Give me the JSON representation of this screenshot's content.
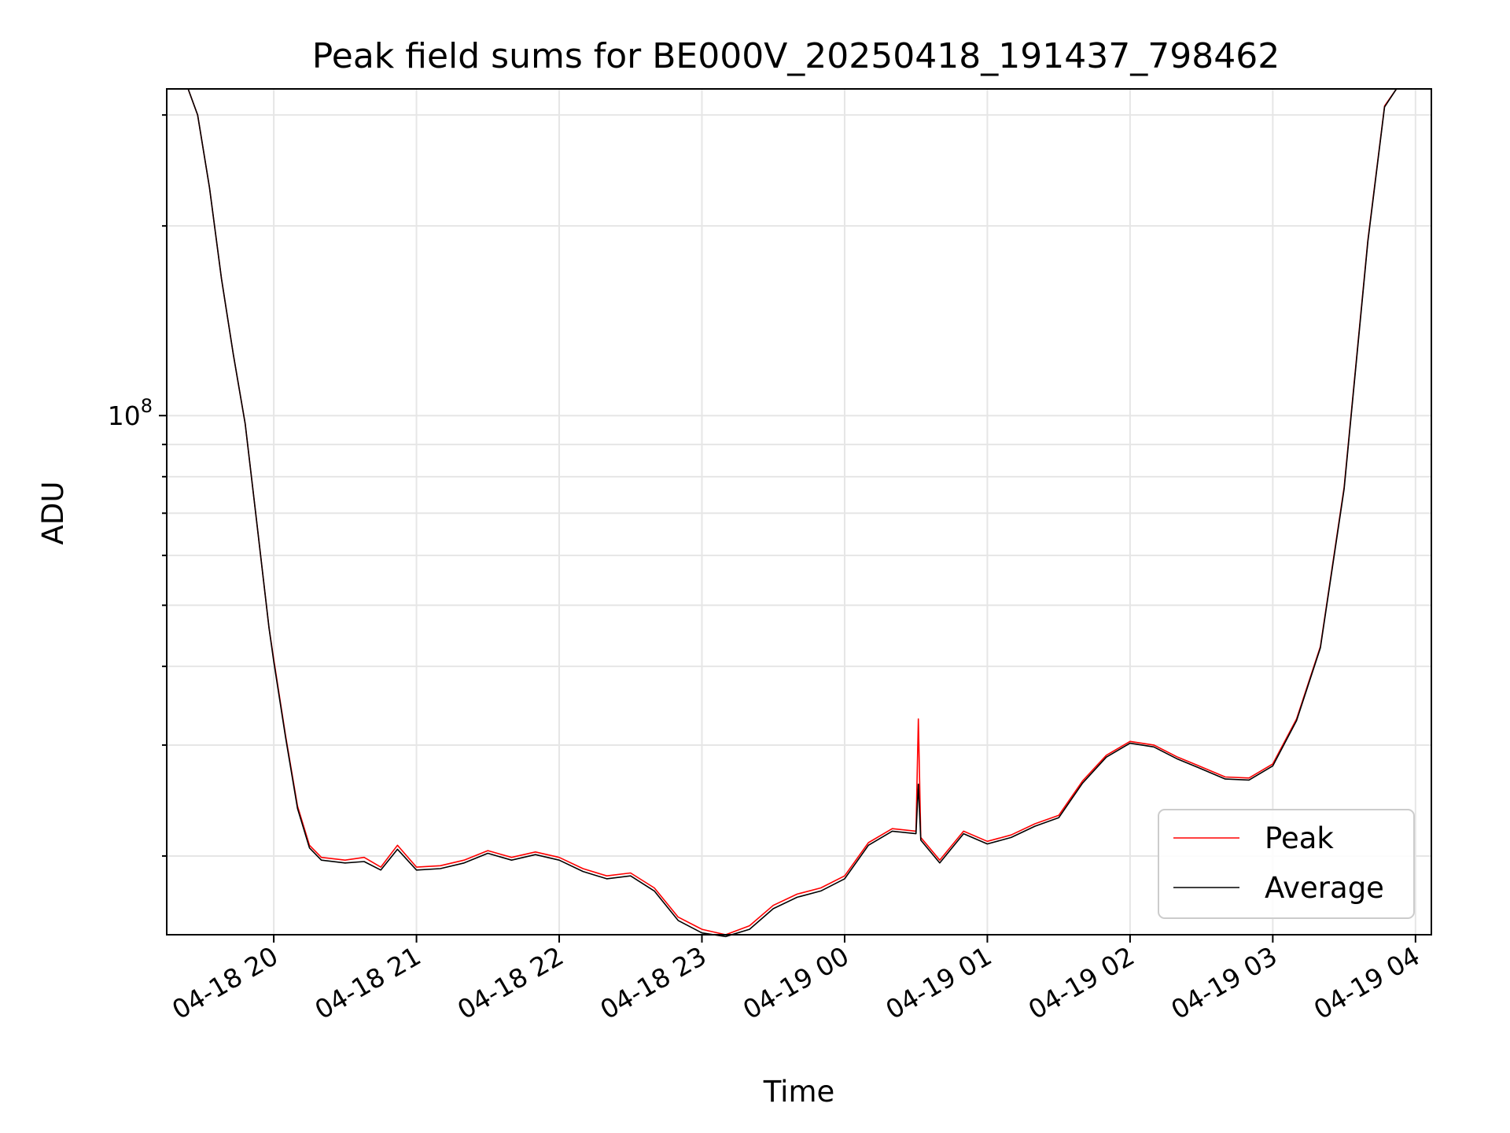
{
  "chart_data": {
    "type": "line",
    "title": "Peak field sums for BE000V_20250418_191437_798462",
    "xlabel": "Time",
    "ylabel": "ADU",
    "y_scale": "log",
    "ylim": [
      15000000,
      330000000
    ],
    "xlim": [
      "2025-04-18T19:15:00",
      "2025-04-19T04:06:40"
    ],
    "x_ticks": [
      {
        "value": "2025-04-18T20:00:00",
        "label": "04-18 20"
      },
      {
        "value": "2025-04-18T21:00:00",
        "label": "04-18 21"
      },
      {
        "value": "2025-04-18T22:00:00",
        "label": "04-18 22"
      },
      {
        "value": "2025-04-18T23:00:00",
        "label": "04-18 23"
      },
      {
        "value": "2025-04-19T00:00:00",
        "label": "04-19 00"
      },
      {
        "value": "2025-04-19T01:00:00",
        "label": "04-19 01"
      },
      {
        "value": "2025-04-19T02:00:00",
        "label": "04-19 02"
      },
      {
        "value": "2025-04-19T03:00:00",
        "label": "04-19 03"
      },
      {
        "value": "2025-04-19T04:00:00",
        "label": "04-19 04"
      }
    ],
    "y_ticks": [
      {
        "value": 100000000,
        "base": "10",
        "exponent": "8"
      }
    ],
    "grid": true,
    "legend_position": "lower-right",
    "series": [
      {
        "name": "Peak",
        "color": "#ff0000",
        "points": [
          [
            "2025-04-18T19:15:00",
            330000000
          ],
          [
            "2025-04-18T19:24:00",
            330000000
          ],
          [
            "2025-04-18T19:28:00",
            300000000
          ],
          [
            "2025-04-18T19:33:00",
            230000000
          ],
          [
            "2025-04-18T19:38:00",
            165000000
          ],
          [
            "2025-04-18T19:43:00",
            125000000
          ],
          [
            "2025-04-18T19:48:00",
            97000000
          ],
          [
            "2025-04-18T19:53:00",
            67000000
          ],
          [
            "2025-04-18T19:58:00",
            46000000
          ],
          [
            "2025-04-18T20:00:00",
            41000000
          ],
          [
            "2025-04-18T20:05:00",
            31000000
          ],
          [
            "2025-04-18T20:10:00",
            24000000
          ],
          [
            "2025-04-18T20:15:00",
            20800000
          ],
          [
            "2025-04-18T20:20:00",
            19900000
          ],
          [
            "2025-04-18T20:30:00",
            19700000
          ],
          [
            "2025-04-18T20:38:00",
            19900000
          ],
          [
            "2025-04-18T20:45:00",
            19200000
          ],
          [
            "2025-04-18T20:52:00",
            20800000
          ],
          [
            "2025-04-18T21:00:00",
            19200000
          ],
          [
            "2025-04-18T21:10:00",
            19300000
          ],
          [
            "2025-04-18T21:20:00",
            19700000
          ],
          [
            "2025-04-18T21:30:00",
            20400000
          ],
          [
            "2025-04-18T21:40:00",
            19900000
          ],
          [
            "2025-04-18T21:50:00",
            20300000
          ],
          [
            "2025-04-18T22:00:00",
            19900000
          ],
          [
            "2025-04-18T22:10:00",
            19100000
          ],
          [
            "2025-04-18T22:20:00",
            18600000
          ],
          [
            "2025-04-18T22:30:00",
            18800000
          ],
          [
            "2025-04-18T22:40:00",
            17800000
          ],
          [
            "2025-04-18T22:50:00",
            16000000
          ],
          [
            "2025-04-18T23:00:00",
            15300000
          ],
          [
            "2025-04-18T23:10:00",
            15000000
          ],
          [
            "2025-04-18T23:20:00",
            15500000
          ],
          [
            "2025-04-18T23:30:00",
            16700000
          ],
          [
            "2025-04-18T23:40:00",
            17400000
          ],
          [
            "2025-04-18T23:50:00",
            17800000
          ],
          [
            "2025-04-19T00:00:00",
            18600000
          ],
          [
            "2025-04-19T00:10:00",
            21000000
          ],
          [
            "2025-04-19T00:20:00",
            22100000
          ],
          [
            "2025-04-19T00:30:00",
            21900000
          ],
          [
            "2025-04-19T00:31:00",
            33000000
          ],
          [
            "2025-04-19T00:32:00",
            21400000
          ],
          [
            "2025-04-19T00:40:00",
            19700000
          ],
          [
            "2025-04-19T00:50:00",
            21900000
          ],
          [
            "2025-04-19T01:00:00",
            21100000
          ],
          [
            "2025-04-19T01:10:00",
            21600000
          ],
          [
            "2025-04-19T01:20:00",
            22500000
          ],
          [
            "2025-04-19T01:30:00",
            23200000
          ],
          [
            "2025-04-19T01:40:00",
            26300000
          ],
          [
            "2025-04-19T01:50:00",
            28900000
          ],
          [
            "2025-04-19T02:00:00",
            30400000
          ],
          [
            "2025-04-19T02:10:00",
            30000000
          ],
          [
            "2025-04-19T02:20:00",
            28700000
          ],
          [
            "2025-04-19T02:30:00",
            27700000
          ],
          [
            "2025-04-19T02:40:00",
            26700000
          ],
          [
            "2025-04-19T02:50:00",
            26600000
          ],
          [
            "2025-04-19T03:00:00",
            28000000
          ],
          [
            "2025-04-19T03:10:00",
            33000000
          ],
          [
            "2025-04-19T03:20:00",
            43000000
          ],
          [
            "2025-04-19T03:30:00",
            77000000
          ],
          [
            "2025-04-19T03:40:00",
            190000000
          ],
          [
            "2025-04-19T03:47:00",
            310000000
          ],
          [
            "2025-04-19T03:52:00",
            330000000
          ],
          [
            "2025-04-19T04:06:40",
            330000000
          ]
        ]
      },
      {
        "name": "Average",
        "color": "#000000",
        "points": [
          [
            "2025-04-18T19:15:00",
            330000000
          ],
          [
            "2025-04-18T19:24:00",
            330000000
          ],
          [
            "2025-04-18T19:28:00",
            300000000
          ],
          [
            "2025-04-18T19:33:00",
            230000000
          ],
          [
            "2025-04-18T19:38:00",
            165000000
          ],
          [
            "2025-04-18T19:43:00",
            125000000
          ],
          [
            "2025-04-18T19:48:00",
            97000000
          ],
          [
            "2025-04-18T19:53:00",
            67000000
          ],
          [
            "2025-04-18T19:58:00",
            46000000
          ],
          [
            "2025-04-18T20:00:00",
            40700000
          ],
          [
            "2025-04-18T20:05:00",
            30800000
          ],
          [
            "2025-04-18T20:10:00",
            23800000
          ],
          [
            "2025-04-18T20:15:00",
            20600000
          ],
          [
            "2025-04-18T20:20:00",
            19700000
          ],
          [
            "2025-04-18T20:30:00",
            19500000
          ],
          [
            "2025-04-18T20:38:00",
            19600000
          ],
          [
            "2025-04-18T20:45:00",
            19000000
          ],
          [
            "2025-04-18T20:52:00",
            20500000
          ],
          [
            "2025-04-18T21:00:00",
            19000000
          ],
          [
            "2025-04-18T21:10:00",
            19100000
          ],
          [
            "2025-04-18T21:20:00",
            19500000
          ],
          [
            "2025-04-18T21:30:00",
            20200000
          ],
          [
            "2025-04-18T21:40:00",
            19700000
          ],
          [
            "2025-04-18T21:50:00",
            20100000
          ],
          [
            "2025-04-18T22:00:00",
            19700000
          ],
          [
            "2025-04-18T22:10:00",
            18900000
          ],
          [
            "2025-04-18T22:20:00",
            18400000
          ],
          [
            "2025-04-18T22:30:00",
            18600000
          ],
          [
            "2025-04-18T22:40:00",
            17600000
          ],
          [
            "2025-04-18T22:50:00",
            15800000
          ],
          [
            "2025-04-18T23:00:00",
            15100000
          ],
          [
            "2025-04-18T23:10:00",
            14900000
          ],
          [
            "2025-04-18T23:20:00",
            15300000
          ],
          [
            "2025-04-18T23:30:00",
            16500000
          ],
          [
            "2025-04-18T23:40:00",
            17200000
          ],
          [
            "2025-04-18T23:50:00",
            17600000
          ],
          [
            "2025-04-19T00:00:00",
            18400000
          ],
          [
            "2025-04-19T00:10:00",
            20800000
          ],
          [
            "2025-04-19T00:20:00",
            21900000
          ],
          [
            "2025-04-19T00:30:00",
            21700000
          ],
          [
            "2025-04-19T00:31:00",
            26000000
          ],
          [
            "2025-04-19T00:32:00",
            21200000
          ],
          [
            "2025-04-19T00:40:00",
            19500000
          ],
          [
            "2025-04-19T00:50:00",
            21700000
          ],
          [
            "2025-04-19T01:00:00",
            20900000
          ],
          [
            "2025-04-19T01:10:00",
            21400000
          ],
          [
            "2025-04-19T01:20:00",
            22300000
          ],
          [
            "2025-04-19T01:30:00",
            23000000
          ],
          [
            "2025-04-19T01:40:00",
            26100000
          ],
          [
            "2025-04-19T01:50:00",
            28700000
          ],
          [
            "2025-04-19T02:00:00",
            30200000
          ],
          [
            "2025-04-19T02:10:00",
            29800000
          ],
          [
            "2025-04-19T02:20:00",
            28500000
          ],
          [
            "2025-04-19T02:30:00",
            27500000
          ],
          [
            "2025-04-19T02:40:00",
            26500000
          ],
          [
            "2025-04-19T02:50:00",
            26400000
          ],
          [
            "2025-04-19T03:00:00",
            27800000
          ],
          [
            "2025-04-19T03:10:00",
            32800000
          ],
          [
            "2025-04-19T03:20:00",
            42800000
          ],
          [
            "2025-04-19T03:30:00",
            76500000
          ],
          [
            "2025-04-19T03:40:00",
            189000000
          ],
          [
            "2025-04-19T03:47:00",
            309000000
          ],
          [
            "2025-04-19T03:52:00",
            330000000
          ],
          [
            "2025-04-19T04:06:40",
            330000000
          ]
        ]
      }
    ]
  }
}
